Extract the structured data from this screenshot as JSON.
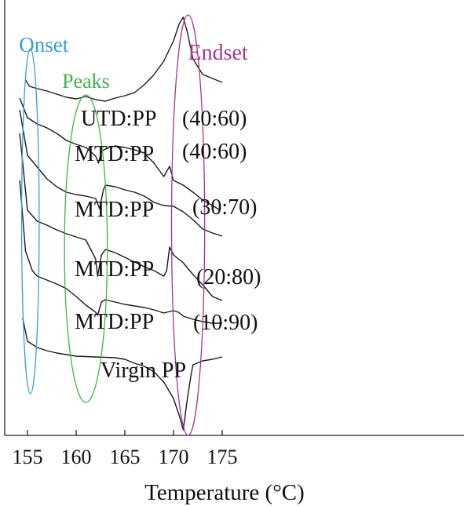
{
  "chart_data": {
    "type": "line",
    "title": "",
    "xlabel": "Temperature (°C)",
    "ylabel": "",
    "xlim": [
      153.5,
      177.5
    ],
    "x_ticks": [
      155,
      160,
      165,
      170,
      175
    ],
    "tick_labels": [
      "155",
      "160",
      "165",
      "170",
      "175"
    ],
    "series": [
      {
        "name": "UTD:PP (40:60)",
        "label_main": "UTD:PP",
        "label_ratio": "(40:60)",
        "points": [
          [
            154.8,
            102
          ],
          [
            155.2,
            110
          ],
          [
            156,
            113
          ],
          [
            157,
            116
          ],
          [
            158,
            120
          ],
          [
            159,
            124
          ],
          [
            160,
            126
          ],
          [
            161,
            123
          ],
          [
            162,
            127
          ],
          [
            163,
            129
          ],
          [
            164,
            125
          ],
          [
            165,
            122
          ],
          [
            166,
            118
          ],
          [
            167,
            108
          ],
          [
            168,
            95
          ],
          [
            169,
            78
          ],
          [
            170,
            52
          ],
          [
            170.6,
            30
          ],
          [
            171,
            22
          ],
          [
            171.4,
            40
          ],
          [
            172,
            75
          ],
          [
            173,
            95
          ],
          [
            174,
            100
          ],
          [
            175,
            105
          ]
        ]
      },
      {
        "name": "MTD:PP (40:60)",
        "label_main": "MTD:PP",
        "label_ratio": "(40:60)",
        "points": [
          [
            154.2,
            125
          ],
          [
            155,
            150
          ],
          [
            156,
            158
          ],
          [
            157,
            163
          ],
          [
            158,
            170
          ],
          [
            159,
            179
          ],
          [
            160,
            184
          ],
          [
            161,
            188
          ],
          [
            162,
            199
          ],
          [
            162.3,
            208
          ],
          [
            162.6,
            193
          ],
          [
            163,
            190
          ],
          [
            164,
            186
          ],
          [
            165,
            188
          ],
          [
            166,
            191
          ],
          [
            167,
            195
          ],
          [
            168,
            208
          ],
          [
            169,
            225
          ],
          [
            169.6,
            212
          ],
          [
            170,
            230
          ],
          [
            171,
            236
          ],
          [
            172,
            245
          ],
          [
            173,
            255
          ],
          [
            174,
            262
          ],
          [
            174.8,
            268
          ]
        ]
      },
      {
        "name": "MTD:PP (30:70)",
        "label_main": "MTD:PP",
        "label_ratio": "(30:70)",
        "points": [
          [
            154.2,
            140
          ],
          [
            155,
            198
          ],
          [
            156,
            213
          ],
          [
            157,
            228
          ],
          [
            158,
            238
          ],
          [
            159,
            245
          ],
          [
            160,
            248
          ],
          [
            161,
            250
          ],
          [
            162,
            253
          ],
          [
            162.4,
            266
          ],
          [
            162.8,
            242
          ],
          [
            163,
            236
          ],
          [
            164,
            238
          ],
          [
            165,
            242
          ],
          [
            166,
            245
          ],
          [
            167,
            250
          ],
          [
            168,
            258
          ],
          [
            169,
            262
          ],
          [
            170,
            263
          ],
          [
            171,
            270
          ],
          [
            172,
            280
          ],
          [
            173,
            292
          ],
          [
            174,
            297
          ],
          [
            175,
            301
          ]
        ]
      },
      {
        "name": "MTD:PP (20:80)",
        "label_main": "MTD:PP",
        "label_ratio": "(20:80)",
        "points": [
          [
            154.2,
            170
          ],
          [
            155,
            268
          ],
          [
            156,
            282
          ],
          [
            157,
            287
          ],
          [
            158,
            293
          ],
          [
            159,
            298
          ],
          [
            160,
            302
          ],
          [
            161,
            306
          ],
          [
            162,
            330
          ],
          [
            162.2,
            352
          ],
          [
            162.6,
            325
          ],
          [
            163,
            318
          ],
          [
            164,
            322
          ],
          [
            165,
            328
          ],
          [
            166,
            334
          ],
          [
            167,
            340
          ],
          [
            168,
            345
          ],
          [
            169,
            352
          ],
          [
            169.3,
            345
          ],
          [
            169.6,
            315
          ],
          [
            170,
            325
          ],
          [
            171,
            335
          ],
          [
            172,
            350
          ],
          [
            173,
            363
          ],
          [
            174,
            378
          ],
          [
            175,
            383
          ]
        ]
      },
      {
        "name": "MTD:PP (10:90)",
        "label_main": "MTD:PP",
        "label_ratio": "(10:90)",
        "points": [
          [
            154.2,
            230
          ],
          [
            154.8,
            320
          ],
          [
            155.5,
            345
          ],
          [
            156,
            352
          ],
          [
            157,
            357
          ],
          [
            158,
            362
          ],
          [
            159,
            368
          ],
          [
            160,
            378
          ],
          [
            161,
            389
          ],
          [
            162,
            398
          ],
          [
            162.2,
            402
          ],
          [
            162.6,
            385
          ],
          [
            163,
            382
          ],
          [
            164,
            385
          ],
          [
            165,
            388
          ],
          [
            166,
            390
          ],
          [
            167,
            392
          ],
          [
            168,
            395
          ],
          [
            169,
            399
          ],
          [
            170,
            396
          ],
          [
            170.5,
            398
          ],
          [
            171,
            403
          ],
          [
            172,
            407
          ],
          [
            173,
            410
          ],
          [
            174,
            412
          ],
          [
            175,
            412
          ]
        ]
      },
      {
        "name": "Virgin PP",
        "label_main": "Virgin PP",
        "label_ratio": "",
        "points": [
          [
            154.5,
            405
          ],
          [
            155,
            435
          ],
          [
            156,
            443
          ],
          [
            157,
            447
          ],
          [
            158,
            450
          ],
          [
            159,
            452
          ],
          [
            160,
            454
          ],
          [
            162,
            455
          ],
          [
            164,
            456
          ],
          [
            165,
            458
          ],
          [
            166,
            463
          ],
          [
            167,
            467
          ],
          [
            168,
            474
          ],
          [
            169,
            487
          ],
          [
            170,
            508
          ],
          [
            170.6,
            530
          ],
          [
            171,
            548
          ],
          [
            171.4,
            510
          ],
          [
            171.8,
            478
          ],
          [
            172,
            465
          ],
          [
            173,
            460
          ],
          [
            174,
            458
          ],
          [
            175,
            455
          ]
        ]
      }
    ],
    "annotations": [
      {
        "text": "Onset",
        "color": "#3a9bd8",
        "x_range": [
          154.4,
          156.2
        ]
      },
      {
        "text": "Peaks",
        "color": "#3cb44b",
        "x_range": [
          158.8,
          163.2
        ]
      },
      {
        "text": "Endset",
        "color": "#a3378f",
        "x_range": [
          169.8,
          173.2
        ]
      }
    ],
    "grid": false,
    "legend": "none"
  }
}
